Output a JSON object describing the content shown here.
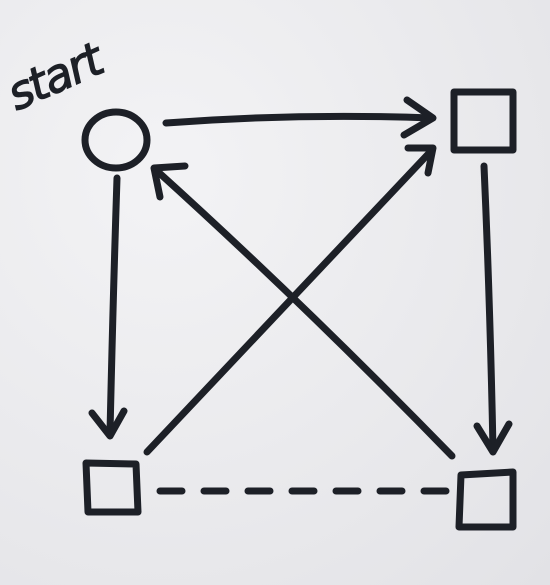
{
  "diagram": {
    "start_label": "start",
    "ink_color": "#1d2027",
    "paper_color": "#ececee",
    "nodes": [
      {
        "id": "start",
        "shape": "circle"
      },
      {
        "id": "top-right",
        "shape": "square"
      },
      {
        "id": "bottom-left",
        "shape": "square"
      },
      {
        "id": "bottom-right",
        "shape": "square"
      }
    ],
    "edges": [
      {
        "from": "start",
        "to": "top-right",
        "style": "solid",
        "arrow": true
      },
      {
        "from": "start",
        "to": "bottom-left",
        "style": "solid",
        "arrow": true
      },
      {
        "from": "top-right",
        "to": "bottom-right",
        "style": "solid",
        "arrow": true
      },
      {
        "from": "bottom-left",
        "to": "top-right",
        "style": "solid",
        "arrow": true
      },
      {
        "from": "bottom-right",
        "to": "start",
        "style": "solid",
        "arrow": true
      },
      {
        "from": "bottom-left",
        "to": "bottom-right",
        "style": "dashed",
        "arrow": false
      }
    ]
  }
}
